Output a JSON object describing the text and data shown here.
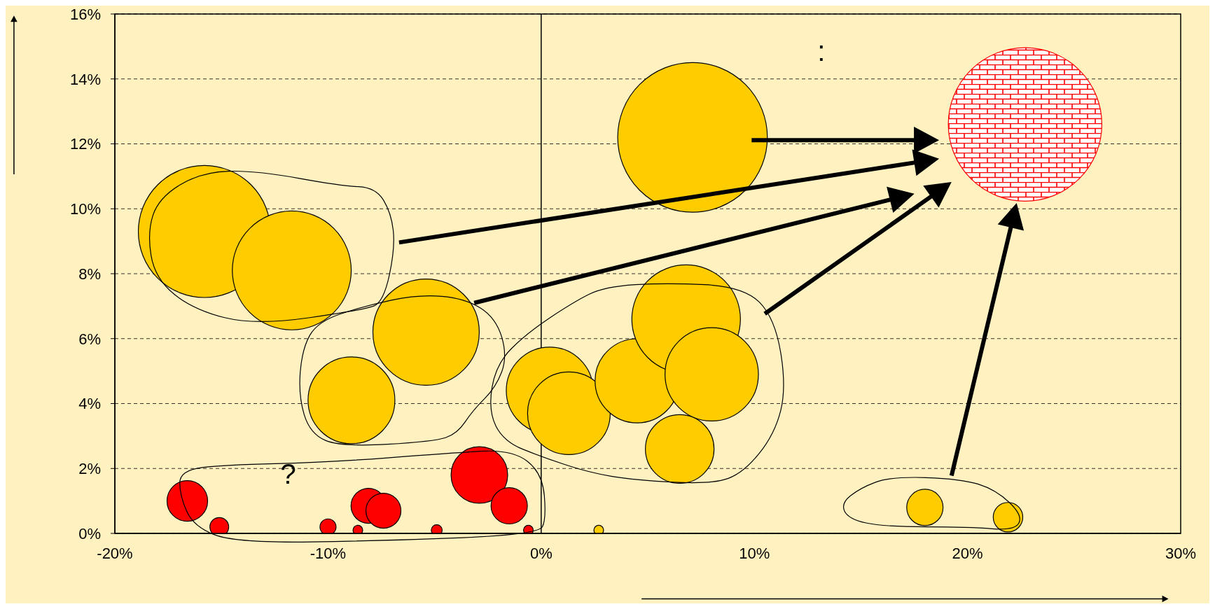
{
  "chart_data": {
    "type": "bubble",
    "xlim": [
      -20,
      30
    ],
    "xticks": [
      {
        "value": -20,
        "label": "-20%"
      },
      {
        "value": -10,
        "label": "-10%"
      },
      {
        "value": 0,
        "label": "0%"
      },
      {
        "value": 10,
        "label": "10%"
      },
      {
        "value": 20,
        "label": "20%"
      },
      {
        "value": 30,
        "label": "30%"
      }
    ],
    "ylim": [
      0,
      16
    ],
    "yticks": [
      {
        "value": 0,
        "label": "0%"
      },
      {
        "value": 2,
        "label": "2%"
      },
      {
        "value": 4,
        "label": "4%"
      },
      {
        "value": 6,
        "label": "6%"
      },
      {
        "value": 8,
        "label": "8%"
      },
      {
        "value": 10,
        "label": "10%"
      },
      {
        "value": 12,
        "label": "12%"
      },
      {
        "value": 14,
        "label": "14%"
      },
      {
        "value": 16,
        "label": "16%"
      }
    ],
    "grid": "y",
    "ref_lines": [
      {
        "axis": "x",
        "value": 0,
        "color": "#000000",
        "line_style": "solid"
      }
    ],
    "series": [
      {
        "color": "#ffcc00",
        "x": [
          7.1,
          -15.8,
          -11.7,
          -5.4,
          -8.9,
          0.4,
          1.3,
          4.5,
          6.8,
          8.0,
          6.5,
          18.0,
          21.9,
          2.7
        ],
        "values": [
          12.2,
          9.3,
          8.1,
          6.2,
          4.1,
          4.4,
          3.7,
          4.7,
          6.6,
          4.9,
          2.6,
          0.8,
          0.5,
          0.1
        ],
        "sizes": [
          0.95,
          0.74,
          0.6,
          0.48,
          0.32,
          0.32,
          0.29,
          0.3,
          0.5,
          0.37,
          0.2,
          0.056,
          0.037,
          0.004
        ]
      },
      {
        "color": "#ff0000",
        "x": [
          -16.6,
          -15.1,
          -10.0,
          -8.6,
          -8.1,
          -7.4,
          -4.9,
          -2.9,
          -1.5,
          -0.6
        ],
        "values": [
          1.0,
          0.2,
          0.2,
          0.1,
          0.85,
          0.7,
          0.1,
          1.8,
          0.85,
          0.1
        ],
        "sizes": [
          0.07,
          0.015,
          0.011,
          0.004,
          0.052,
          0.052,
          0.005,
          0.136,
          0.056,
          0.004
        ]
      },
      {
        "color": "#ff0000",
        "x": [
          22.7
        ],
        "values": [
          12.6
        ],
        "sizes": [
          1
        ]
      }
    ],
    "annotations": [
      "?",
      ":"
    ]
  }
}
